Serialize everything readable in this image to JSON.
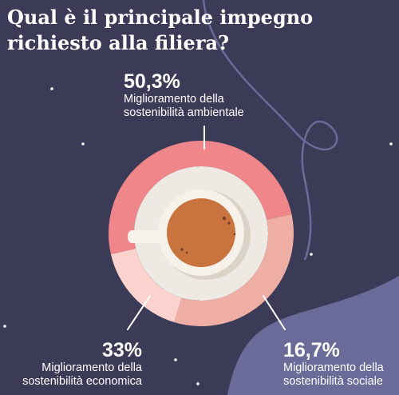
{
  "title": "Qual è il principale impegno richiesto alla filiera?",
  "colors": {
    "background": "#3b3b58",
    "wave": "#6b6b9a",
    "ambientale": "#ee868a",
    "economica": "#eeaea3",
    "sociale": "#fbd2cd",
    "saucer": "#eee9e2",
    "cup_rim": "#f6f1e9",
    "coffee": "#c9743f"
  },
  "chart_data": {
    "type": "pie",
    "title": "Qual è il principale impegno richiesto alla filiera?",
    "series": [
      {
        "name": "ambientale",
        "value": 50.3,
        "label": "50,3%",
        "lines": [
          "Miglioramento della",
          "sostenibilità ambientale"
        ]
      },
      {
        "name": "economica",
        "value": 33,
        "label": "33%",
        "lines": [
          "Miglioramento della",
          "sostenibilità economica"
        ]
      },
      {
        "name": "sociale",
        "value": 16.7,
        "label": "16,7%",
        "lines": [
          "Miglioramento della",
          "sostenibilità sociale"
        ]
      }
    ]
  }
}
